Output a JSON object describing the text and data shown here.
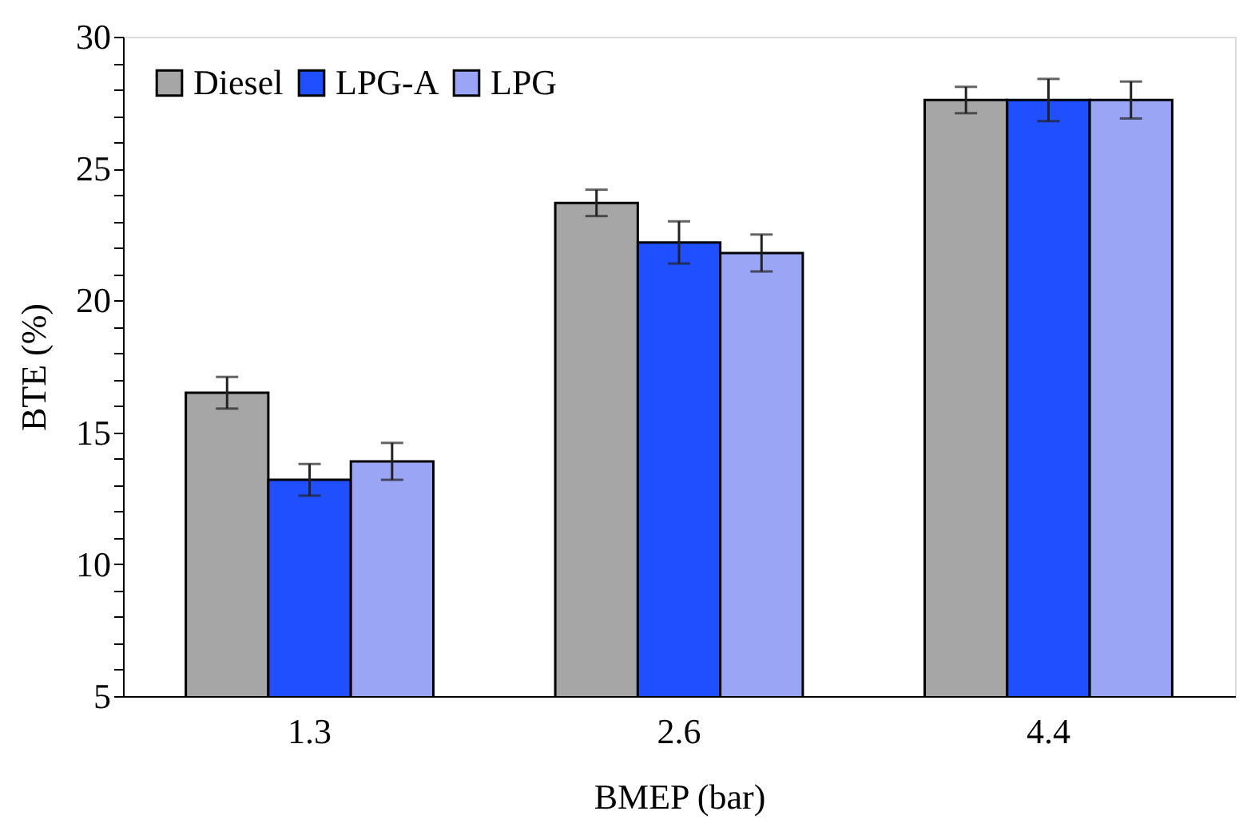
{
  "chart_data": {
    "type": "bar",
    "xlabel": "BMEP (bar)",
    "ylabel": "BTE (%)",
    "categories": [
      "1.3",
      "2.6",
      "4.4"
    ],
    "series": [
      {
        "name": "Diesel",
        "color": "#a6a6a6",
        "values": [
          16.5,
          23.7,
          27.6
        ],
        "errors": [
          0.6,
          0.5,
          0.5
        ]
      },
      {
        "name": "LPG-A",
        "color": "#1f4fff",
        "values": [
          13.2,
          22.2,
          27.6
        ],
        "errors": [
          0.6,
          0.8,
          0.8
        ]
      },
      {
        "name": "LPG",
        "color": "#9aa6f5",
        "values": [
          13.9,
          21.8,
          27.6
        ],
        "errors": [
          0.7,
          0.7,
          0.7
        ]
      }
    ],
    "ylim": [
      5,
      30
    ],
    "yticks": [
      5,
      {
        "value": 6,
        "label": null
      },
      {
        "value": 7,
        "label": null
      },
      {
        "value": 8,
        "label": null
      },
      {
        "value": 9,
        "label": null
      },
      10,
      {
        "value": 11,
        "label": null
      },
      {
        "value": 12,
        "label": null
      },
      {
        "value": 13,
        "label": null
      },
      {
        "value": 14,
        "label": null
      },
      15,
      {
        "value": 16,
        "label": null
      },
      {
        "value": 17,
        "label": null
      },
      {
        "value": 18,
        "label": null
      },
      {
        "value": 19,
        "label": null
      },
      20,
      {
        "value": 21,
        "label": null
      },
      {
        "value": 22,
        "label": null
      },
      {
        "value": 23,
        "label": null
      },
      {
        "value": 24,
        "label": null
      },
      25,
      {
        "value": 26,
        "label": null
      },
      {
        "value": 27,
        "label": null
      },
      {
        "value": 28,
        "label": null
      },
      {
        "value": 29,
        "label": null
      },
      30
    ],
    "legend": "top left",
    "grid": false
  }
}
